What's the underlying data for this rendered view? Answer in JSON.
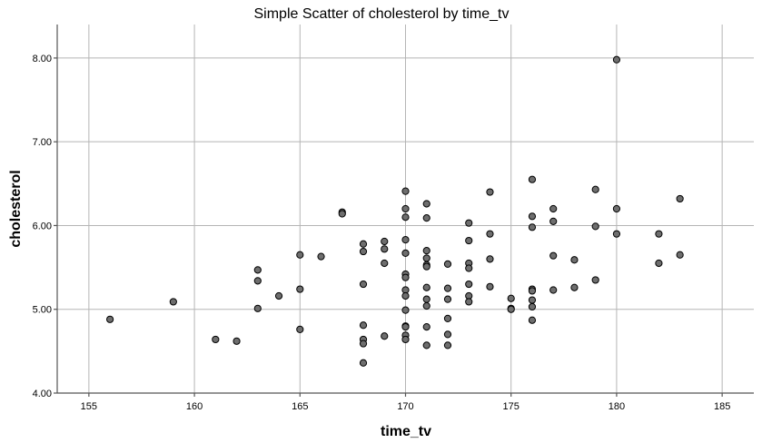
{
  "chart_data": {
    "type": "scatter",
    "title": "Simple Scatter of cholesterol by time_tv",
    "xlabel": "time_tv",
    "ylabel": "cholesterol",
    "xlim": [
      153.5,
      186.5
    ],
    "ylim": [
      4.0,
      8.4
    ],
    "xticks": [
      155,
      160,
      165,
      170,
      175,
      180,
      185
    ],
    "yticks": [
      4.0,
      5.0,
      6.0,
      7.0,
      8.0
    ],
    "xtick_labels": [
      "155",
      "160",
      "165",
      "170",
      "175",
      "180",
      "185"
    ],
    "ytick_labels": [
      "4.00",
      "5.00",
      "6.00",
      "7.00",
      "8.00"
    ],
    "grid": true,
    "point_color": "#6e6e6e",
    "points": [
      [
        156,
        4.88
      ],
      [
        159,
        5.09
      ],
      [
        161,
        4.64
      ],
      [
        162,
        4.62
      ],
      [
        163,
        5.47
      ],
      [
        163,
        5.34
      ],
      [
        163,
        5.01
      ],
      [
        164,
        5.16
      ],
      [
        165,
        5.65
      ],
      [
        165,
        5.24
      ],
      [
        165,
        4.76
      ],
      [
        166,
        5.63
      ],
      [
        167,
        6.16
      ],
      [
        167,
        6.14
      ],
      [
        168,
        5.78
      ],
      [
        168,
        5.69
      ],
      [
        168,
        5.3
      ],
      [
        168,
        4.81
      ],
      [
        168,
        4.64
      ],
      [
        168,
        4.59
      ],
      [
        168,
        4.36
      ],
      [
        169,
        5.81
      ],
      [
        169,
        5.72
      ],
      [
        169,
        5.55
      ],
      [
        169,
        4.68
      ],
      [
        170,
        6.41
      ],
      [
        170,
        6.2
      ],
      [
        170,
        6.1
      ],
      [
        170,
        5.83
      ],
      [
        170,
        5.67
      ],
      [
        170,
        5.42
      ],
      [
        170,
        5.38
      ],
      [
        170,
        5.23
      ],
      [
        170,
        5.16
      ],
      [
        170,
        4.99
      ],
      [
        170,
        4.8
      ],
      [
        170,
        4.79
      ],
      [
        170,
        4.69
      ],
      [
        170,
        4.64
      ],
      [
        171,
        6.26
      ],
      [
        171,
        6.09
      ],
      [
        171,
        5.7
      ],
      [
        171,
        5.61
      ],
      [
        171,
        5.53
      ],
      [
        171,
        5.51
      ],
      [
        171,
        5.26
      ],
      [
        171,
        5.12
      ],
      [
        171,
        5.04
      ],
      [
        171,
        4.79
      ],
      [
        171,
        4.57
      ],
      [
        172,
        5.54
      ],
      [
        172,
        5.25
      ],
      [
        172,
        5.12
      ],
      [
        172,
        4.89
      ],
      [
        172,
        4.7
      ],
      [
        172,
        4.57
      ],
      [
        173,
        6.03
      ],
      [
        173,
        5.82
      ],
      [
        173,
        5.55
      ],
      [
        173,
        5.49
      ],
      [
        173,
        5.3
      ],
      [
        173,
        5.16
      ],
      [
        173,
        5.09
      ],
      [
        174,
        6.4
      ],
      [
        174,
        5.9
      ],
      [
        174,
        5.6
      ],
      [
        174,
        5.27
      ],
      [
        175,
        5.13
      ],
      [
        175,
        5.01
      ],
      [
        175,
        5.0
      ],
      [
        176,
        6.55
      ],
      [
        176,
        6.11
      ],
      [
        176,
        5.98
      ],
      [
        176,
        5.24
      ],
      [
        176,
        5.22
      ],
      [
        176,
        5.11
      ],
      [
        176,
        5.03
      ],
      [
        176,
        4.87
      ],
      [
        177,
        6.2
      ],
      [
        177,
        6.05
      ],
      [
        177,
        5.64
      ],
      [
        177,
        5.23
      ],
      [
        178,
        5.59
      ],
      [
        178,
        5.26
      ],
      [
        179,
        6.43
      ],
      [
        179,
        5.99
      ],
      [
        179,
        5.35
      ],
      [
        180,
        7.98
      ],
      [
        180,
        6.2
      ],
      [
        180,
        5.9
      ],
      [
        182,
        5.9
      ],
      [
        182,
        5.55
      ],
      [
        183,
        6.32
      ],
      [
        183,
        5.65
      ]
    ]
  }
}
